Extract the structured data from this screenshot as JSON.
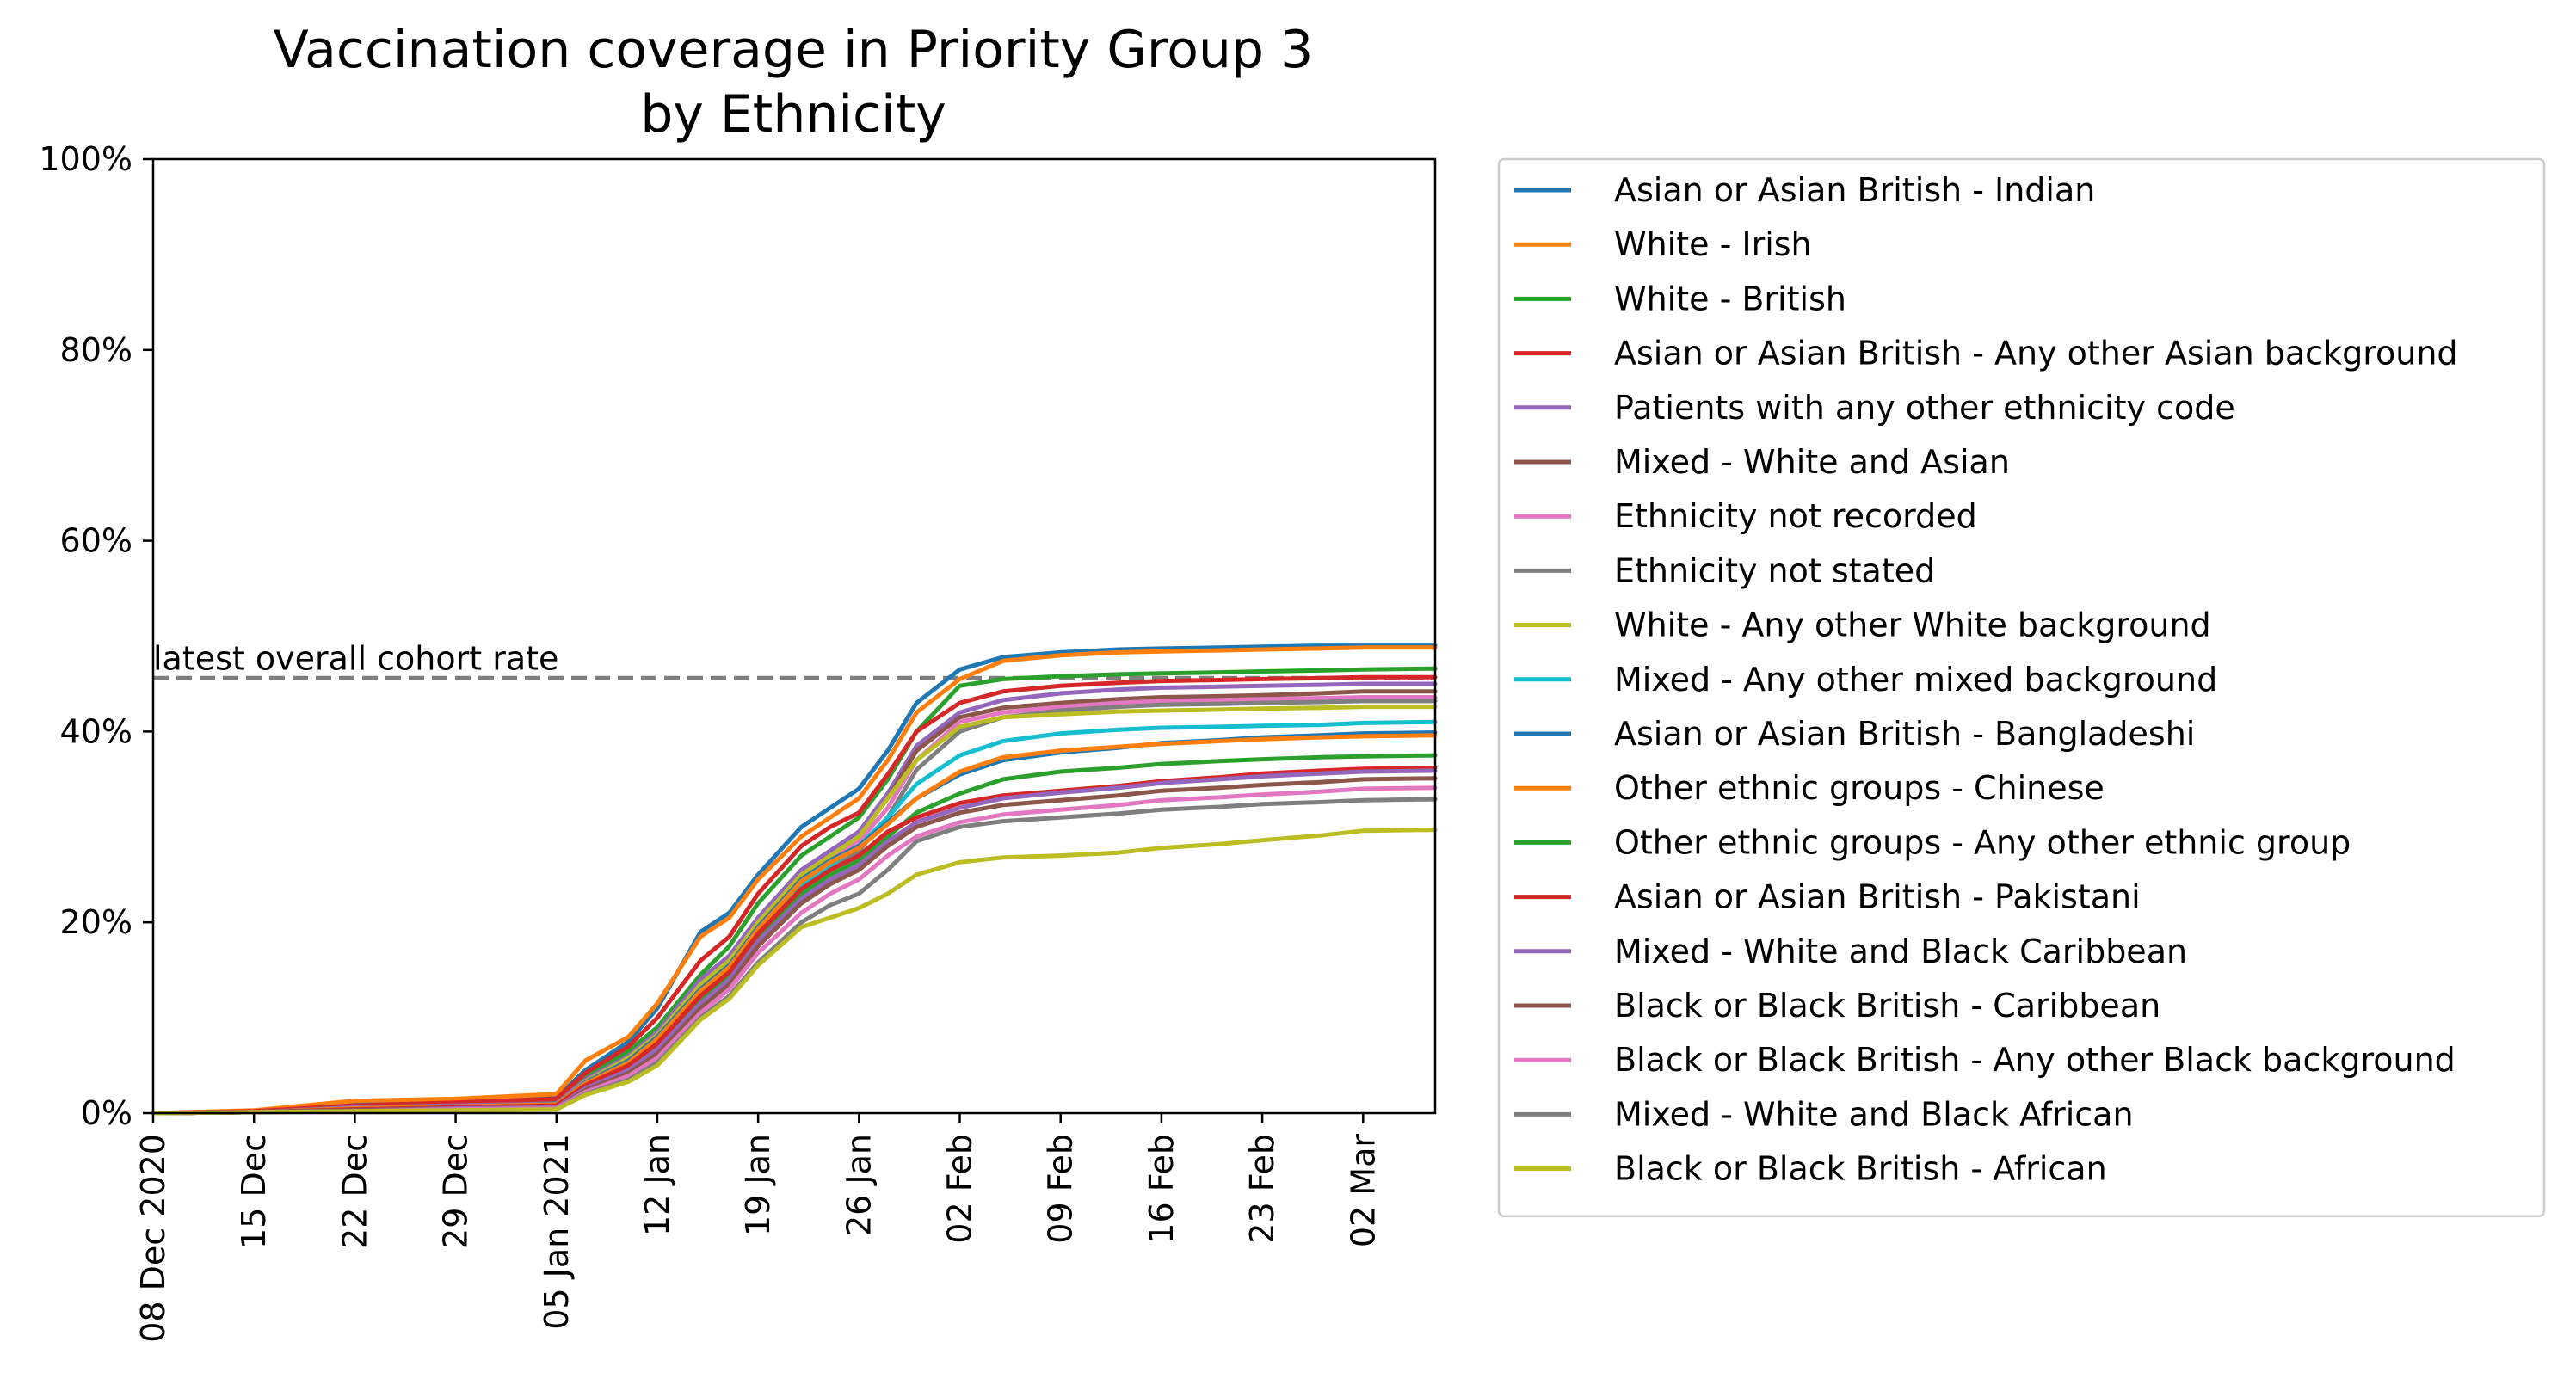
{
  "chart_data": {
    "type": "line",
    "title_lines": [
      "Vaccination coverage in Priority Group 3",
      "by Ethnicity"
    ],
    "xlabel": "",
    "ylabel": "",
    "x_range": [
      "2020-12-08",
      "2021-03-07"
    ],
    "ylim": [
      0,
      100
    ],
    "y_ticks": [
      0,
      20,
      40,
      60,
      80,
      100
    ],
    "y_tick_labels": [
      "0%",
      "20%",
      "40%",
      "60%",
      "80%",
      "100%"
    ],
    "x_ticks": [
      "2020-12-08",
      "2020-12-15",
      "2020-12-22",
      "2020-12-29",
      "2021-01-05",
      "2021-01-12",
      "2021-01-19",
      "2021-01-26",
      "2021-02-02",
      "2021-02-09",
      "2021-02-16",
      "2021-02-23",
      "2021-03-02"
    ],
    "x_tick_labels": [
      "08 Dec 2020",
      "15 Dec",
      "22 Dec",
      "29 Dec",
      "05 Jan 2021",
      "12 Jan",
      "19 Jan",
      "26 Jan",
      "02 Feb",
      "09 Feb",
      "16 Feb",
      "23 Feb",
      "02 Mar"
    ],
    "grid": false,
    "legend_position": "outside right",
    "reference_line": {
      "label": "latest overall cohort rate",
      "y": 45.6,
      "color": "#7f7f7f",
      "style": "dashed"
    },
    "x": [
      "2020-12-08",
      "2020-12-15",
      "2020-12-22",
      "2020-12-29",
      "2021-01-05",
      "2021-01-07",
      "2021-01-10",
      "2021-01-12",
      "2021-01-15",
      "2021-01-17",
      "2021-01-19",
      "2021-01-22",
      "2021-01-24",
      "2021-01-26",
      "2021-01-28",
      "2021-01-30",
      "2021-02-02",
      "2021-02-05",
      "2021-02-09",
      "2021-02-13",
      "2021-02-16",
      "2021-02-20",
      "2021-02-23",
      "2021-02-27",
      "2021-03-02",
      "2021-03-07"
    ],
    "series": [
      {
        "name": "Asian or Asian British - Indian",
        "color": "#1f77b4",
        "values": [
          0,
          0.2,
          0.9,
          1.2,
          1.6,
          4.5,
          7.5,
          11,
          19,
          21,
          25,
          30,
          32,
          34,
          38,
          43,
          46.5,
          47.8,
          48.3,
          48.6,
          48.7,
          48.8,
          48.9,
          49,
          49,
          49
        ]
      },
      {
        "name": "White - Irish",
        "color": "#ff7f0e",
        "values": [
          0,
          0.3,
          1.3,
          1.5,
          2,
          5.5,
          8,
          11.5,
          18.5,
          20.5,
          24.5,
          29,
          31,
          33,
          37,
          42,
          45.5,
          47.4,
          48,
          48.3,
          48.4,
          48.5,
          48.6,
          48.7,
          48.8,
          48.8
        ]
      },
      {
        "name": "White - British",
        "color": "#2ca02c",
        "values": [
          0,
          0.1,
          0.6,
          0.8,
          1.1,
          3.8,
          6.5,
          9,
          14.5,
          17.5,
          22,
          27,
          29,
          31,
          35,
          40,
          44.8,
          45.5,
          45.8,
          46,
          46.1,
          46.2,
          46.3,
          46.4,
          46.5,
          46.6
        ]
      },
      {
        "name": "Asian or Asian British - Any other Asian background",
        "color": "#d62728",
        "values": [
          0,
          0.2,
          0.8,
          1.1,
          1.5,
          4.2,
          7,
          10,
          16,
          18.5,
          23,
          28,
          30,
          31.5,
          35.5,
          40,
          43,
          44.2,
          44.8,
          45.1,
          45.3,
          45.4,
          45.5,
          45.6,
          45.7,
          45.7
        ]
      },
      {
        "name": "Patients with any other ethnicity code",
        "color": "#9467bd",
        "values": [
          0,
          0.1,
          0.6,
          0.8,
          1,
          3.5,
          6,
          8.5,
          14,
          16.5,
          20.5,
          25.5,
          27.5,
          29.5,
          33.5,
          38.5,
          42,
          43.3,
          44,
          44.4,
          44.6,
          44.7,
          44.8,
          44.9,
          45,
          45
        ]
      },
      {
        "name": "Mixed - White and Asian",
        "color": "#8c564b",
        "values": [
          0,
          0.1,
          0.5,
          0.7,
          0.9,
          3.2,
          5.5,
          8,
          13.5,
          16,
          20,
          25,
          27,
          29,
          33,
          38,
          41.5,
          42.5,
          43,
          43.4,
          43.6,
          43.7,
          43.8,
          44,
          44.2,
          44.2
        ]
      },
      {
        "name": "Ethnicity not recorded",
        "color": "#e377c2",
        "values": [
          0,
          0.1,
          0.4,
          0.6,
          0.8,
          3,
          5.2,
          7.5,
          13,
          15.5,
          19.5,
          24.5,
          26.5,
          28.5,
          32,
          37,
          41,
          42,
          42.6,
          43,
          43.2,
          43.3,
          43.4,
          43.5,
          43.6,
          43.6
        ]
      },
      {
        "name": "Ethnicity not stated",
        "color": "#7f7f7f",
        "values": [
          0,
          0.1,
          0.3,
          0.5,
          0.6,
          2.5,
          4.5,
          6.5,
          12,
          14.5,
          18.5,
          23.5,
          25.5,
          27.5,
          31,
          36,
          40,
          41.5,
          42.2,
          42.6,
          42.8,
          42.9,
          43,
          43.1,
          43.2,
          43.2
        ]
      },
      {
        "name": "White - Any other White background",
        "color": "#bcbd22",
        "values": [
          0,
          0.1,
          0.5,
          0.7,
          0.9,
          3.3,
          5.8,
          8.2,
          13.5,
          16,
          20,
          25,
          27,
          29,
          33,
          37,
          40.5,
          41.5,
          41.8,
          42.1,
          42.2,
          42.3,
          42.4,
          42.5,
          42.6,
          42.6
        ]
      },
      {
        "name": "Mixed - Any other mixed background",
        "color": "#17becf",
        "values": [
          0,
          0.1,
          0.4,
          0.6,
          0.8,
          3,
          5,
          7.5,
          12.5,
          15,
          19,
          24,
          26,
          28,
          31,
          34.5,
          37.5,
          39,
          39.8,
          40.2,
          40.4,
          40.5,
          40.6,
          40.7,
          40.9,
          41
        ]
      },
      {
        "name": "Asian or Asian British - Bangladeshi",
        "color": "#1f77b4",
        "values": [
          0,
          0.1,
          0.5,
          0.7,
          0.9,
          3.2,
          5.5,
          8,
          13,
          15.5,
          19.5,
          24.5,
          26.5,
          28,
          30.5,
          33,
          35.5,
          37,
          37.8,
          38.3,
          38.8,
          39.1,
          39.4,
          39.6,
          39.8,
          39.9
        ]
      },
      {
        "name": "Other ethnic groups - Chinese",
        "color": "#ff7f0e",
        "values": [
          0,
          0.1,
          0.5,
          0.7,
          0.9,
          3.1,
          5.3,
          7.8,
          12.8,
          15.3,
          19.3,
          24.3,
          26.3,
          27.8,
          30.3,
          33,
          35.8,
          37.3,
          38,
          38.4,
          38.7,
          39,
          39.2,
          39.4,
          39.5,
          39.6
        ]
      },
      {
        "name": "Other ethnic groups - Any other ethnic group",
        "color": "#2ca02c",
        "values": [
          0,
          0.1,
          0.4,
          0.6,
          0.7,
          2.8,
          4.8,
          7,
          12,
          14.5,
          18.5,
          23,
          25,
          26.5,
          29,
          31.5,
          33.5,
          35,
          35.8,
          36.2,
          36.6,
          36.9,
          37.1,
          37.3,
          37.4,
          37.5
        ]
      },
      {
        "name": "Asian or Asian British - Pakistani",
        "color": "#d62728",
        "values": [
          0,
          0.1,
          0.4,
          0.6,
          0.8,
          2.9,
          5,
          7.3,
          12.3,
          14.8,
          18.8,
          23.5,
          25.5,
          27,
          29.5,
          31,
          32.5,
          33.3,
          33.8,
          34.3,
          34.8,
          35.2,
          35.6,
          35.9,
          36.1,
          36.2
        ]
      },
      {
        "name": "Mixed - White and Black Caribbean",
        "color": "#9467bd",
        "values": [
          0,
          0.1,
          0.3,
          0.5,
          0.6,
          2.6,
          4.5,
          6.7,
          11.5,
          14,
          18,
          22.5,
          24.5,
          26,
          28.5,
          30.5,
          32,
          33,
          33.6,
          34.1,
          34.6,
          35,
          35.3,
          35.6,
          35.8,
          35.9
        ]
      },
      {
        "name": "Black or Black British - Caribbean",
        "color": "#8c564b",
        "values": [
          0,
          0.1,
          0.3,
          0.4,
          0.5,
          2.4,
          4.2,
          6.2,
          11,
          13.5,
          17.5,
          22,
          24,
          25.5,
          28,
          30,
          31.5,
          32.3,
          32.8,
          33.3,
          33.8,
          34.1,
          34.4,
          34.7,
          35,
          35.1
        ]
      },
      {
        "name": "Black or Black British - Any other Black background",
        "color": "#e377c2",
        "values": [
          0,
          0.1,
          0.2,
          0.4,
          0.5,
          2.2,
          3.9,
          5.8,
          10.5,
          13,
          16.8,
          21,
          23,
          24.5,
          27,
          29,
          30.5,
          31.3,
          31.8,
          32.3,
          32.8,
          33.1,
          33.4,
          33.7,
          34,
          34.1
        ]
      },
      {
        "name": "Mixed - White and Black African",
        "color": "#7f7f7f",
        "values": [
          0,
          0.1,
          0.2,
          0.3,
          0.4,
          2,
          3.5,
          5.3,
          10,
          12.3,
          15.8,
          20,
          21.8,
          23,
          25.5,
          28.5,
          30,
          30.6,
          31,
          31.4,
          31.8,
          32.1,
          32.4,
          32.6,
          32.8,
          32.9
        ]
      },
      {
        "name": "Black or Black British - African",
        "color": "#bcbd22",
        "values": [
          0,
          0.1,
          0.2,
          0.3,
          0.4,
          1.9,
          3.3,
          5,
          9.8,
          12,
          15.5,
          19.5,
          20.5,
          21.5,
          23,
          25,
          26.3,
          26.8,
          27,
          27.3,
          27.8,
          28.2,
          28.6,
          29.1,
          29.6,
          29.7
        ]
      }
    ]
  }
}
